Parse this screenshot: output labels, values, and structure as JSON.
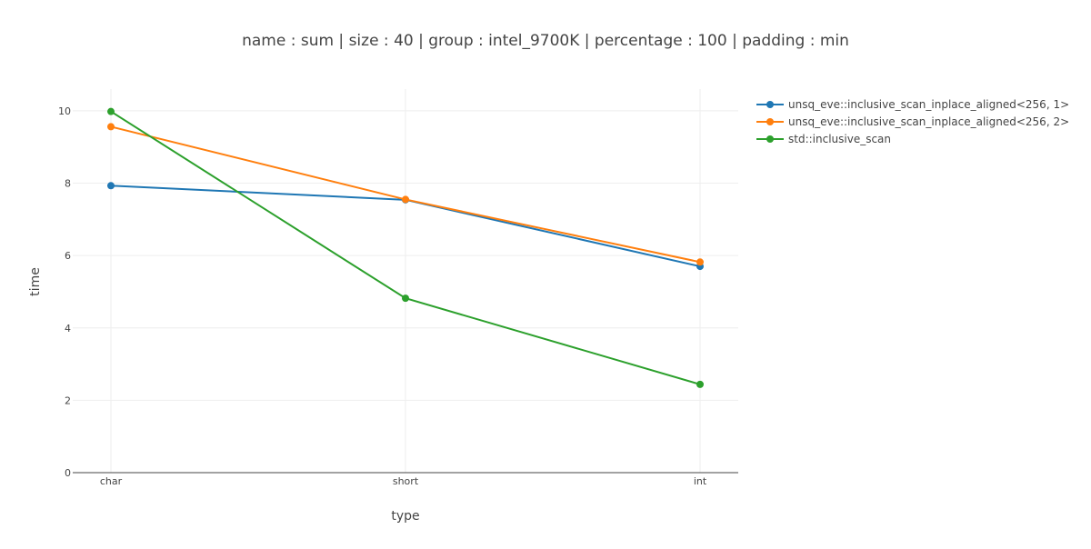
{
  "chart_data": {
    "type": "line",
    "title": "name : sum | size : 40 | group : intel_9700K | percentage : 100 | padding : min",
    "xlabel": "type",
    "ylabel": "time",
    "categories": [
      "char",
      "short",
      "int"
    ],
    "ylim": [
      0,
      10.6
    ],
    "yticks": [
      0,
      2,
      4,
      6,
      8,
      10
    ],
    "grid": true,
    "legend_position": "top-right",
    "series": [
      {
        "name": "unsq_eve::inclusive_scan_inplace_aligned<256, 1>",
        "color": "#1f77b4",
        "values": [
          7.93,
          7.54,
          5.7
        ]
      },
      {
        "name": "unsq_eve::inclusive_scan_inplace_aligned<256, 2>",
        "color": "#ff7f0e",
        "values": [
          9.56,
          7.55,
          5.82
        ]
      },
      {
        "name": "std::inclusive_scan",
        "color": "#2ca02c",
        "values": [
          9.98,
          4.82,
          2.44
        ]
      }
    ]
  }
}
